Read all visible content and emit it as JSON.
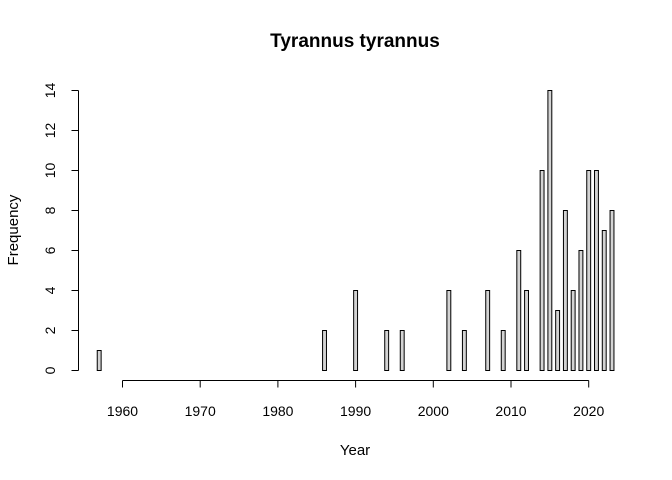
{
  "chart_data": {
    "type": "bar",
    "title": "Tyrannus tyrannus",
    "xlabel": "Year",
    "ylabel": "Frequency",
    "xlim": [
      1957,
      2023
    ],
    "ylim": [
      0,
      14
    ],
    "x_ticks": [
      1960,
      1970,
      1980,
      1990,
      2000,
      2010,
      2020
    ],
    "y_ticks": [
      0,
      2,
      4,
      6,
      8,
      10,
      12,
      14
    ],
    "bar_color": "#d3d3d3",
    "grid": false,
    "legend": "none",
    "data": [
      {
        "year": 1957,
        "count": 1
      },
      {
        "year": 1986,
        "count": 2
      },
      {
        "year": 1990,
        "count": 4
      },
      {
        "year": 1994,
        "count": 2
      },
      {
        "year": 1996,
        "count": 2
      },
      {
        "year": 2002,
        "count": 4
      },
      {
        "year": 2004,
        "count": 2
      },
      {
        "year": 2007,
        "count": 4
      },
      {
        "year": 2009,
        "count": 2
      },
      {
        "year": 2011,
        "count": 6
      },
      {
        "year": 2012,
        "count": 4
      },
      {
        "year": 2014,
        "count": 10
      },
      {
        "year": 2015,
        "count": 14
      },
      {
        "year": 2016,
        "count": 3
      },
      {
        "year": 2017,
        "count": 8
      },
      {
        "year": 2018,
        "count": 4
      },
      {
        "year": 2019,
        "count": 6
      },
      {
        "year": 2020,
        "count": 10
      },
      {
        "year": 2021,
        "count": 10
      },
      {
        "year": 2022,
        "count": 7
      },
      {
        "year": 2023,
        "count": 8
      }
    ]
  }
}
